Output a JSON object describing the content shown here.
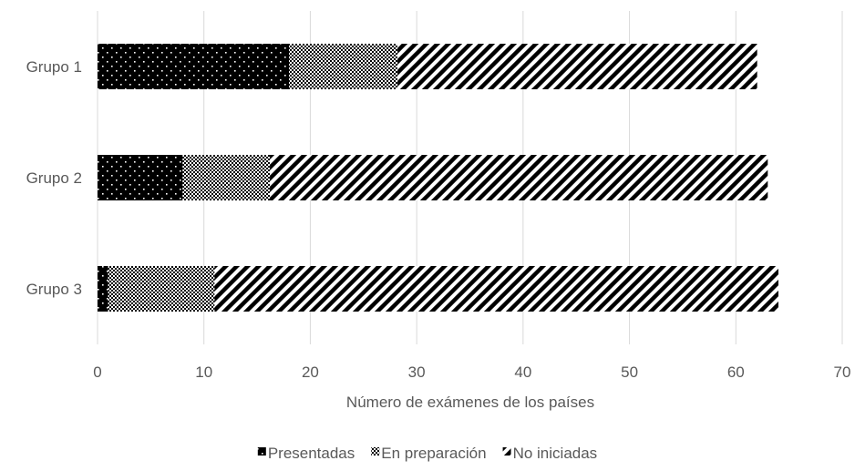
{
  "chart_data": {
    "type": "bar",
    "orientation": "horizontal",
    "stacked": true,
    "categories": [
      "Grupo 1",
      "Grupo 2",
      "Grupo 3"
    ],
    "series": [
      {
        "name": "Presentadas",
        "values": [
          18,
          8,
          1
        ],
        "pattern": "dots",
        "color": "#000000"
      },
      {
        "name": "En preparación",
        "values": [
          10.2,
          8.2,
          10
        ],
        "pattern": "checker",
        "color": "#000000"
      },
      {
        "name": "No iniciadas",
        "values": [
          33.8,
          46.8,
          53
        ],
        "pattern": "diagonal",
        "color": "#000000"
      }
    ],
    "xlabel": "Número de exámenes de los países",
    "ylabel": "",
    "xlim": [
      0,
      70
    ],
    "xticks": [
      0,
      10,
      20,
      30,
      40,
      50,
      60,
      70
    ],
    "grid": true,
    "legend_position": "bottom",
    "colors": {
      "text": "#595959",
      "grid": "#d9d9d9",
      "bar": "#000000"
    }
  }
}
